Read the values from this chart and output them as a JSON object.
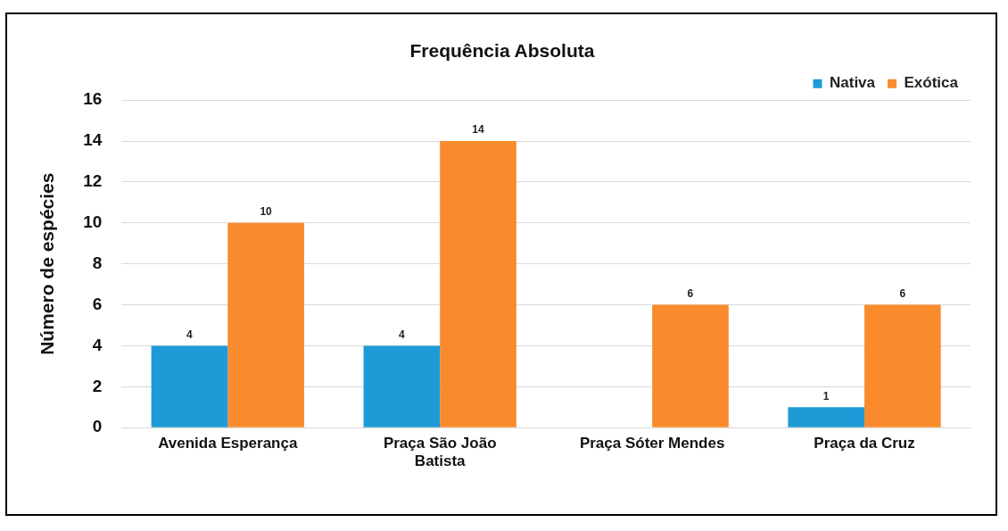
{
  "chart_data": {
    "type": "bar",
    "title": "Frequência Absoluta",
    "ylabel": "Número de espécies",
    "categories": [
      "Avenida Esperança",
      "Praça São João Batista",
      "Praça Sóter Mendes",
      "Praça da Cruz"
    ],
    "series": [
      {
        "name": "Nativa",
        "color": "#1e9bd7",
        "values": [
          4,
          4,
          null,
          1
        ]
      },
      {
        "name": "Exótica",
        "color": "#f98b2c",
        "values": [
          10,
          14,
          6,
          6
        ]
      }
    ],
    "ylim": [
      0,
      16
    ],
    "yticks": [
      0,
      2,
      4,
      6,
      8,
      10,
      12,
      14,
      16
    ],
    "grid": "y",
    "legend": "top right",
    "data_labels": true
  }
}
